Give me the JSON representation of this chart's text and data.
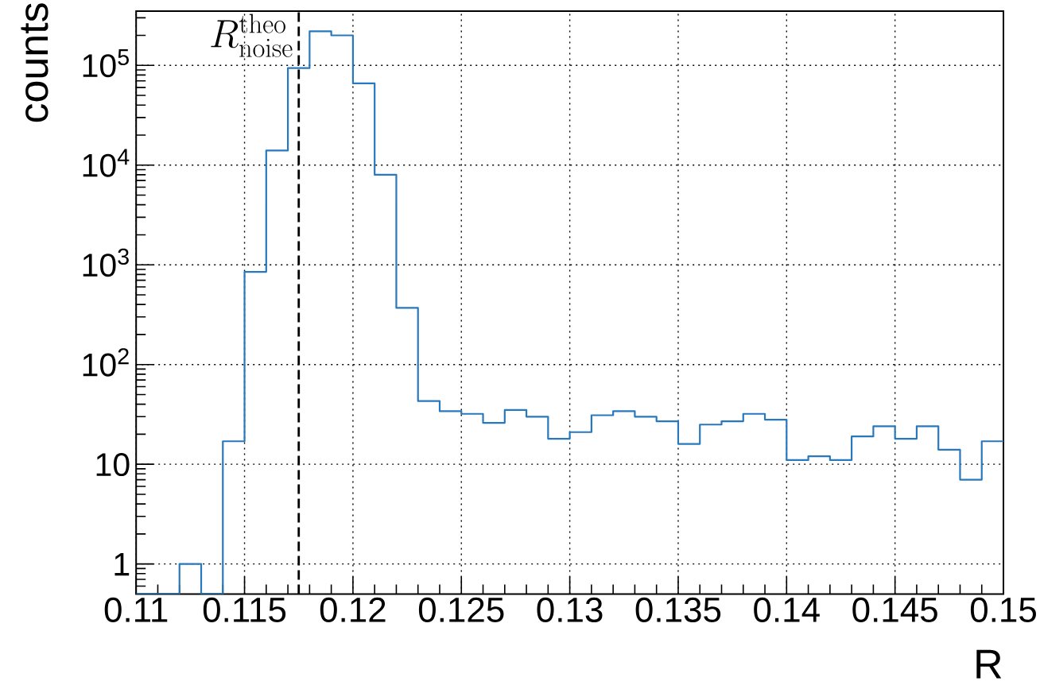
{
  "chart_data": {
    "type": "histogram",
    "xlabel": "R",
    "ylabel": "counts",
    "bins": [
      0.11,
      0.111,
      0.112,
      0.113,
      0.114,
      0.115,
      0.116,
      0.117,
      0.118,
      0.119,
      0.12,
      0.121,
      0.122,
      0.123,
      0.124,
      0.125,
      0.126,
      0.127,
      0.128,
      0.129,
      0.13,
      0.131,
      0.132,
      0.133,
      0.134,
      0.135,
      0.136,
      0.137,
      0.138,
      0.139,
      0.14,
      0.141,
      0.142,
      0.143,
      0.144,
      0.145,
      0.146,
      0.147,
      0.148,
      0.149,
      0.15
    ],
    "values": [
      null,
      null,
      1,
      null,
      17,
      850,
      14000,
      94000,
      220000,
      200000,
      66000,
      8000,
      370,
      43,
      34,
      32,
      26,
      35,
      30,
      18,
      21,
      31,
      34,
      30,
      27,
      16,
      25,
      27,
      32,
      28,
      11,
      12,
      11,
      19,
      24,
      18,
      24,
      14,
      7,
      17
    ],
    "color": "#2878bd",
    "xlim": [
      0.11,
      0.15
    ],
    "xticks": [
      0.11,
      0.115,
      0.12,
      0.125,
      0.13,
      0.135,
      0.14,
      0.145,
      0.15
    ],
    "ylim": [
      0.5,
      350000
    ],
    "yticks": [
      1,
      10,
      {
        "value": 100,
        "label": "10$^{2}$"
      },
      {
        "value": 1000,
        "label": "10$^{3}$"
      },
      {
        "value": 10000,
        "label": "10$^{4}$"
      },
      {
        "value": 100000,
        "label": "10$^{5}$"
      }
    ],
    "log": true,
    "grid": true,
    "ref_lines": [
      {
        "axis": "x",
        "value": 0.1175,
        "label": "R^{\\mathrm{theo}}_{\\mathrm{noise}}",
        "color": "#000000",
        "line_style": "dashed"
      }
    ]
  }
}
